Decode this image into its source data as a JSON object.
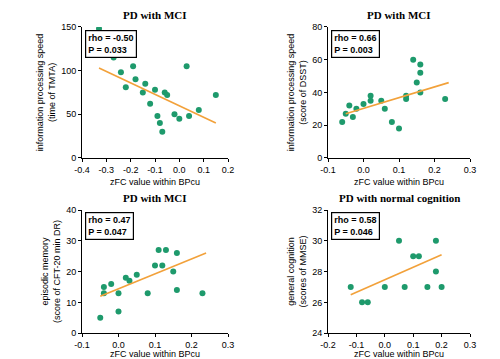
{
  "chart_data": [
    {
      "type": "scatter",
      "title": "PD with MCI",
      "xlabel": "zFC value within BPcu",
      "ylabel": "information processing speed\n(time of TMTA)",
      "xlim": [
        -0.4,
        0.2
      ],
      "xticks": [
        -0.4,
        -0.3,
        -0.2,
        -0.1,
        {
          "value": 0,
          "label": "0.0"
        },
        0.1,
        0.2
      ],
      "ylim": [
        0,
        150
      ],
      "yticks": [
        0,
        50,
        100,
        150
      ],
      "grid": false,
      "annotations": [
        "rho = -0.50",
        "P = 0.033"
      ],
      "series": [
        {
          "type": "scatter",
          "marker": "circle",
          "color": "#1e9a6c",
          "x": [
            -0.33,
            -0.27,
            -0.24,
            -0.22,
            -0.19,
            -0.18,
            -0.15,
            -0.14,
            -0.12,
            -0.1,
            -0.09,
            -0.08,
            -0.07,
            -0.06,
            -0.05,
            -0.02,
            0.0,
            0.03,
            0.04,
            0.08,
            0.15
          ],
          "values": [
            148,
            115,
            98,
            81,
            105,
            90,
            75,
            85,
            62,
            78,
            48,
            40,
            30,
            75,
            72,
            50,
            45,
            105,
            48,
            55,
            72
          ]
        },
        {
          "type": "line",
          "color": "#f2a13a",
          "x": [
            -0.33,
            0.15
          ],
          "values": [
            103,
            40
          ]
        }
      ]
    },
    {
      "type": "scatter",
      "title": "PD with MCI",
      "xlabel": "zFC value within BPcu",
      "ylabel": "information processing speed\n(score of DSST)",
      "xlim": [
        -0.1,
        0.3
      ],
      "xticks": [
        -0.1,
        {
          "value": 0,
          "label": "0.0"
        },
        0.1,
        0.2,
        0.3
      ],
      "ylim": [
        0,
        80
      ],
      "yticks": [
        0,
        20,
        40,
        60,
        80
      ],
      "grid": false,
      "annotations": [
        "rho = 0.66",
        "P = 0.003"
      ],
      "series": [
        {
          "type": "scatter",
          "marker": "circle",
          "color": "#1e9a6c",
          "x": [
            -0.06,
            -0.05,
            -0.04,
            -0.03,
            -0.02,
            0.0,
            0.02,
            0.02,
            0.05,
            0.06,
            0.08,
            0.1,
            0.12,
            0.12,
            0.14,
            0.15,
            0.16,
            0.16,
            0.16,
            0.23
          ],
          "values": [
            22,
            27,
            32,
            25,
            30,
            33,
            35,
            38,
            35,
            30,
            22,
            18,
            38,
            36,
            60,
            46,
            40,
            57,
            52,
            36
          ]
        },
        {
          "type": "line",
          "color": "#f2a13a",
          "x": [
            -0.05,
            0.24
          ],
          "values": [
            27,
            46
          ]
        }
      ]
    },
    {
      "type": "scatter",
      "title": "PD with MCI",
      "xlabel": "zFC value within BPcu",
      "ylabel": "episodic memory\n(score of CFT-20 min DR)",
      "xlim": [
        -0.1,
        0.3
      ],
      "xticks": [
        -0.1,
        {
          "value": 0,
          "label": "0.0"
        },
        0.1,
        0.2,
        0.3
      ],
      "ylim": [
        0,
        40
      ],
      "yticks": [
        0,
        10,
        20,
        30,
        40
      ],
      "grid": false,
      "annotations": [
        "rho = 0.47",
        "P = 0.047"
      ],
      "series": [
        {
          "type": "scatter",
          "marker": "circle",
          "color": "#1e9a6c",
          "x": [
            -0.05,
            -0.04,
            -0.04,
            -0.02,
            0.0,
            0.0,
            0.02,
            0.03,
            0.05,
            0.08,
            0.1,
            0.11,
            0.12,
            0.13,
            0.15,
            0.16,
            0.16,
            0.23
          ],
          "values": [
            5,
            13,
            15,
            16,
            7,
            13,
            18,
            17,
            19,
            13,
            22,
            27,
            22,
            27,
            20,
            14,
            26,
            13
          ]
        },
        {
          "type": "line",
          "color": "#f2a13a",
          "x": [
            -0.05,
            0.24
          ],
          "values": [
            12,
            26
          ]
        }
      ]
    },
    {
      "type": "scatter",
      "title": "PD with normal cognition",
      "xlabel": "zFC value within BPcu",
      "ylabel": "general cognition\n(scores of MMSE)",
      "xlim": [
        -0.2,
        0.3
      ],
      "xticks": [
        -0.2,
        -0.1,
        {
          "value": 0,
          "label": "0.0"
        },
        0.1,
        0.2,
        0.3
      ],
      "ylim": [
        24,
        32
      ],
      "yticks": [
        24,
        26,
        28,
        30,
        32
      ],
      "grid": false,
      "annotations": [
        "rho = 0.58",
        "P = 0.046"
      ],
      "series": [
        {
          "type": "scatter",
          "marker": "circle",
          "color": "#1e9a6c",
          "x": [
            -0.12,
            -0.08,
            -0.06,
            0.0,
            0.05,
            0.07,
            0.1,
            0.12,
            0.15,
            0.18,
            0.18,
            0.2
          ],
          "values": [
            27,
            26,
            26,
            27,
            30,
            27,
            29,
            29,
            27,
            28,
            30,
            27
          ]
        },
        {
          "type": "line",
          "color": "#f2a13a",
          "x": [
            -0.12,
            0.2
          ],
          "values": [
            26.5,
            29.1
          ]
        }
      ]
    }
  ]
}
